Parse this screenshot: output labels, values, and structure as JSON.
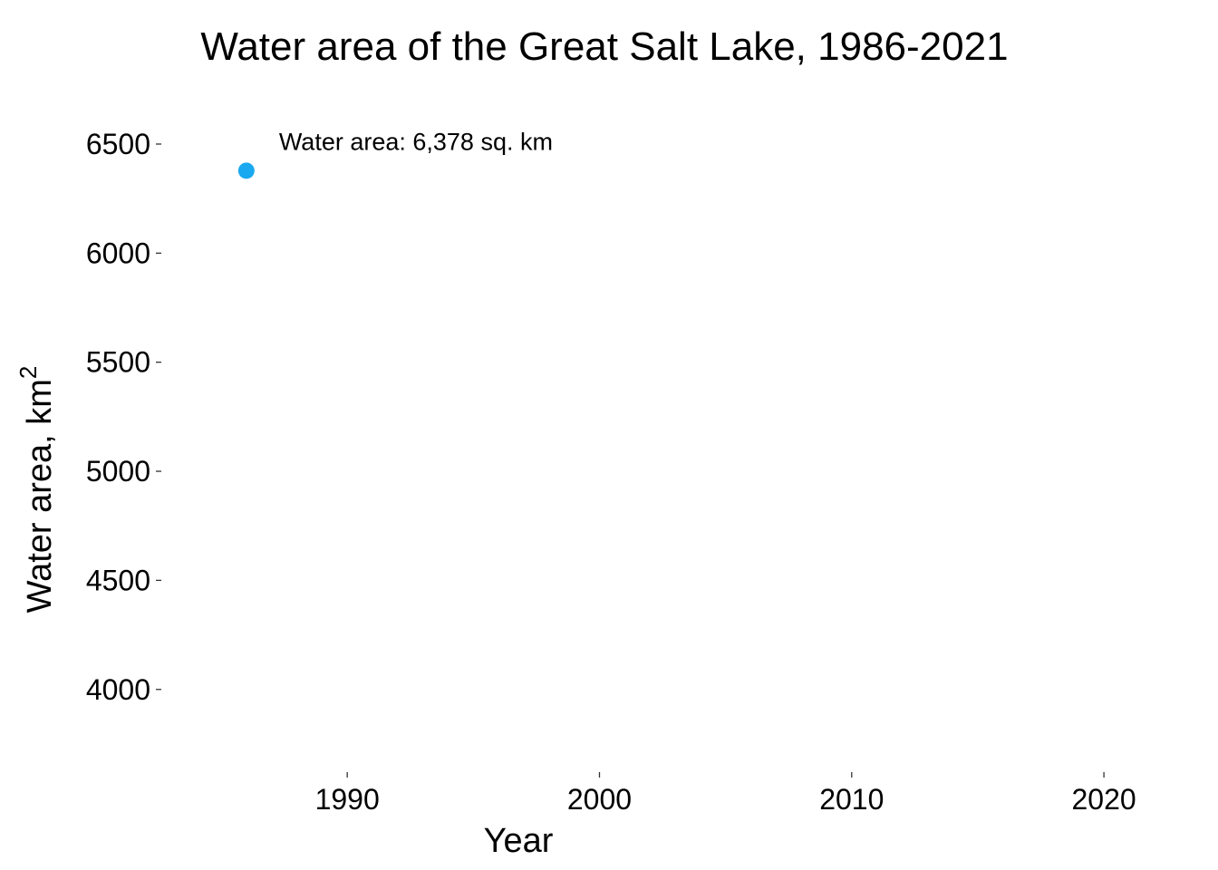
{
  "chart_data": {
    "type": "scatter",
    "title": "Water area of the Great Salt Lake, 1986-2021",
    "xlabel": "Year",
    "ylabel": "Water area, km",
    "ylabel_superscript": "2",
    "x_ticks": [
      1990,
      2000,
      2010,
      2020
    ],
    "y_ticks": [
      4000,
      4500,
      5000,
      5500,
      6000,
      6500
    ],
    "xlim": [
      1982.7,
      2024.2
    ],
    "ylim": [
      3650,
      6745
    ],
    "grid": false,
    "point_color": "#1aa9f0",
    "points": [
      {
        "x": 1986,
        "y": 6378
      }
    ],
    "annotation": "Water area: 6,378 sq. km"
  }
}
